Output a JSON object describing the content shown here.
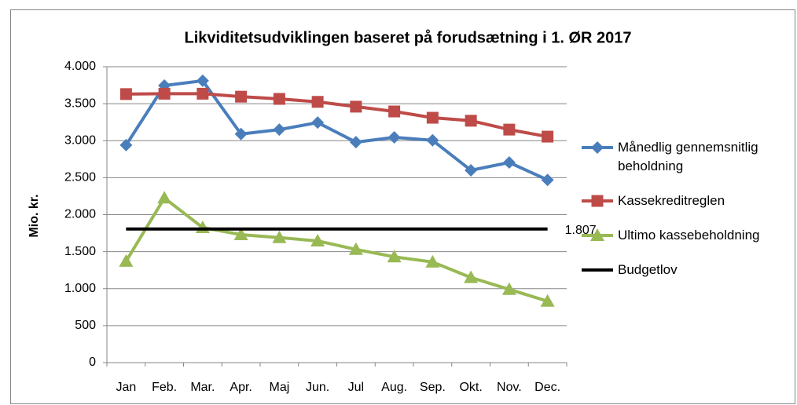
{
  "chart_data": {
    "type": "line",
    "title": "Likviditetsudviklingen baseret på forudsætning i 1. ØR 2017",
    "y_label": "Mio. kr.",
    "categories": [
      "Jan",
      "Feb.",
      "Mar.",
      "Apr.",
      "Maj",
      "Jun.",
      "Jul",
      "Aug.",
      "Sep.",
      "Okt.",
      "Nov.",
      "Dec."
    ],
    "series": [
      {
        "name": "Månedlig gennemsnitlig beholdning",
        "color": "#4a7ebb",
        "marker": "diamond",
        "values": [
          2940,
          3745,
          3810,
          3090,
          3150,
          3245,
          2980,
          3045,
          3005,
          2600,
          2705,
          2470
        ]
      },
      {
        "name": "Kassekreditreglen",
        "color": "#be4b48",
        "marker": "square",
        "values": [
          3630,
          3635,
          3635,
          3595,
          3565,
          3525,
          3460,
          3395,
          3310,
          3270,
          3150,
          3055
        ]
      },
      {
        "name": "Ultimo kassebeholdning",
        "color": "#98b954",
        "marker": "triangle",
        "values": [
          1370,
          2225,
          1825,
          1730,
          1690,
          1645,
          1530,
          1430,
          1360,
          1150,
          990,
          830
        ]
      },
      {
        "name": "Budgetlov",
        "color": "#000000",
        "marker": "none",
        "values": [
          1807,
          1807,
          1807,
          1807,
          1807,
          1807,
          1807,
          1807,
          1807,
          1807,
          1807,
          1807
        ],
        "value_labels": [
          null,
          null,
          null,
          null,
          null,
          null,
          null,
          null,
          null,
          null,
          null,
          "1.807"
        ]
      }
    ],
    "ylim": [
      0,
      4000
    ],
    "yticks": [
      0,
      500,
      {
        "value": 1000,
        "label": "1.000"
      },
      {
        "value": 1500,
        "label": "1.500"
      },
      {
        "value": 2000,
        "label": "2.000"
      },
      {
        "value": 2500,
        "label": "2.500"
      },
      {
        "value": 3000,
        "label": "3.000"
      },
      {
        "value": 3500,
        "label": "3.500"
      },
      {
        "value": 4000,
        "label": "4.000"
      }
    ],
    "grid": true,
    "legend": "right"
  }
}
